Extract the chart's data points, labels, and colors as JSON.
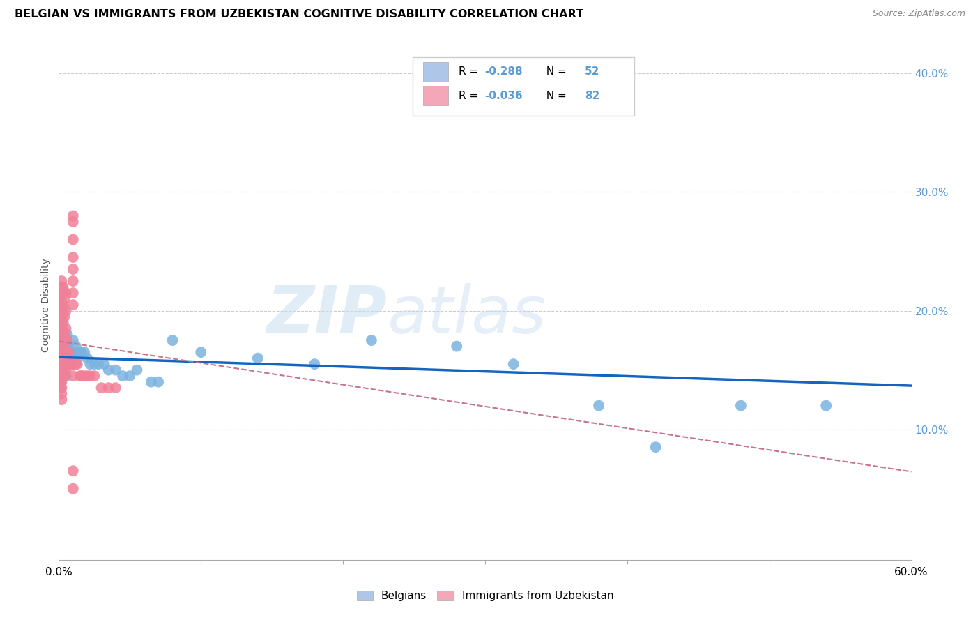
{
  "title": "BELGIAN VS IMMIGRANTS FROM UZBEKISTAN COGNITIVE DISABILITY CORRELATION CHART",
  "source": "Source: ZipAtlas.com",
  "ylabel": "Cognitive Disability",
  "watermark_zip": "ZIP",
  "watermark_atlas": "atlas",
  "belgians_color": "#7bb3e0",
  "uzbekistan_color": "#f08098",
  "belgians_legend_color": "#aec6e8",
  "uzbek_legend_color": "#f4a7b9",
  "trendline_belgian_color": "#1565c0",
  "trendline_uzbek_color": "#c8738a",
  "xlim": [
    0.0,
    0.6
  ],
  "ylim": [
    -0.01,
    0.42
  ],
  "right_ytick_vals": [
    0.1,
    0.2,
    0.3,
    0.4
  ],
  "right_ytick_labels": [
    "10.0%",
    "20.0%",
    "30.0%",
    "40.0%"
  ],
  "r_belgian": -0.288,
  "n_belgian": 52,
  "r_uzbek": -0.036,
  "n_uzbek": 82,
  "belgians_x": [
    0.003,
    0.003,
    0.004,
    0.004,
    0.004,
    0.004,
    0.004,
    0.005,
    0.005,
    0.005,
    0.005,
    0.005,
    0.006,
    0.006,
    0.006,
    0.007,
    0.007,
    0.008,
    0.008,
    0.009,
    0.009,
    0.01,
    0.01,
    0.011,
    0.012,
    0.013,
    0.015,
    0.016,
    0.018,
    0.02,
    0.022,
    0.025,
    0.028,
    0.032,
    0.035,
    0.04,
    0.045,
    0.05,
    0.055,
    0.065,
    0.07,
    0.08,
    0.1,
    0.14,
    0.18,
    0.22,
    0.28,
    0.32,
    0.38,
    0.42,
    0.48,
    0.54
  ],
  "belgians_y": [
    0.2,
    0.19,
    0.175,
    0.17,
    0.165,
    0.16,
    0.155,
    0.175,
    0.17,
    0.165,
    0.155,
    0.145,
    0.18,
    0.17,
    0.155,
    0.165,
    0.155,
    0.165,
    0.155,
    0.165,
    0.155,
    0.175,
    0.155,
    0.165,
    0.17,
    0.16,
    0.165,
    0.165,
    0.165,
    0.16,
    0.155,
    0.155,
    0.155,
    0.155,
    0.15,
    0.15,
    0.145,
    0.145,
    0.15,
    0.14,
    0.14,
    0.175,
    0.165,
    0.16,
    0.155,
    0.175,
    0.17,
    0.155,
    0.12,
    0.085,
    0.12,
    0.12
  ],
  "uzbek_x": [
    0.001,
    0.001,
    0.001,
    0.001,
    0.001,
    0.001,
    0.001,
    0.001,
    0.001,
    0.001,
    0.001,
    0.001,
    0.001,
    0.001,
    0.001,
    0.001,
    0.002,
    0.002,
    0.002,
    0.002,
    0.002,
    0.002,
    0.002,
    0.002,
    0.002,
    0.002,
    0.002,
    0.002,
    0.002,
    0.002,
    0.002,
    0.003,
    0.003,
    0.003,
    0.003,
    0.003,
    0.003,
    0.003,
    0.003,
    0.003,
    0.004,
    0.004,
    0.004,
    0.004,
    0.004,
    0.004,
    0.005,
    0.005,
    0.005,
    0.005,
    0.005,
    0.006,
    0.006,
    0.006,
    0.007,
    0.007,
    0.008,
    0.009,
    0.01,
    0.011,
    0.012,
    0.013,
    0.015,
    0.016,
    0.018,
    0.02,
    0.022,
    0.025,
    0.03,
    0.035,
    0.04,
    0.01,
    0.01,
    0.01,
    0.01,
    0.01,
    0.01,
    0.01,
    0.01,
    0.01,
    0.01,
    0.01
  ],
  "uzbek_y": [
    0.215,
    0.21,
    0.205,
    0.2,
    0.195,
    0.19,
    0.185,
    0.175,
    0.17,
    0.165,
    0.16,
    0.155,
    0.15,
    0.145,
    0.14,
    0.135,
    0.225,
    0.22,
    0.215,
    0.205,
    0.195,
    0.185,
    0.175,
    0.165,
    0.155,
    0.15,
    0.145,
    0.14,
    0.135,
    0.13,
    0.125,
    0.22,
    0.215,
    0.205,
    0.19,
    0.18,
    0.17,
    0.16,
    0.155,
    0.15,
    0.21,
    0.195,
    0.18,
    0.165,
    0.155,
    0.145,
    0.215,
    0.2,
    0.185,
    0.165,
    0.15,
    0.175,
    0.165,
    0.155,
    0.165,
    0.155,
    0.155,
    0.155,
    0.155,
    0.155,
    0.155,
    0.155,
    0.145,
    0.145,
    0.145,
    0.145,
    0.145,
    0.145,
    0.135,
    0.135,
    0.135,
    0.28,
    0.275,
    0.26,
    0.245,
    0.235,
    0.225,
    0.215,
    0.205,
    0.145,
    0.065,
    0.05
  ]
}
